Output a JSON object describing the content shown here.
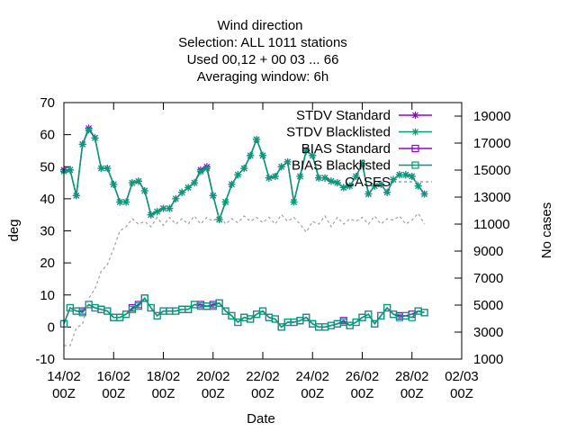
{
  "chart_data": {
    "type": "line",
    "title_lines": [
      "Wind direction",
      "Selection: ALL    1011 stations",
      "Used  00,12  + 00 03 ... 66",
      "Averaging window:  6h"
    ],
    "xlabel": "Date",
    "ylabel": "deg",
    "y2label": "No cases",
    "ylim": [
      -10,
      70
    ],
    "y2lim": [
      1000,
      20000
    ],
    "xlim": [
      0,
      16
    ],
    "yticks": [
      "-10",
      "0",
      "10",
      "20",
      "30",
      "40",
      "50",
      "60",
      "70"
    ],
    "y2ticks": [
      "1000",
      "3000",
      "5000",
      "7000",
      "9000",
      "11000",
      "13000",
      "15000",
      "17000",
      "19000"
    ],
    "xticks": [
      {
        "day": "14/02",
        "time": "00Z"
      },
      {
        "day": "16/02",
        "time": "00Z"
      },
      {
        "day": "18/02",
        "time": "00Z"
      },
      {
        "day": "20/02",
        "time": "00Z"
      },
      {
        "day": "22/02",
        "time": "00Z"
      },
      {
        "day": "24/02",
        "time": "00Z"
      },
      {
        "day": "26/02",
        "time": "00Z"
      },
      {
        "day": "28/02",
        "time": "00Z"
      },
      {
        "day": "02/03",
        "time": "00Z"
      }
    ],
    "x_units": "days since 14/02 00Z",
    "legend": {
      "position": "top-right",
      "entries": [
        "STDV Standard",
        "STDV Blacklisted",
        "BIAS Standard",
        "BIAS Blacklisted",
        "CASES"
      ]
    },
    "colors": {
      "standard": "#9400d3",
      "blacklisted": "#009e73",
      "cases": "#a0a0a0"
    },
    "series": [
      {
        "name": "STDV Standard",
        "axis": "y1",
        "x": [
          0,
          0.25,
          0.5,
          0.75,
          1,
          1.25,
          1.5,
          1.75,
          2,
          2.25,
          2.5,
          2.75,
          3,
          3.25,
          3.5,
          3.75,
          4,
          4.25,
          4.5,
          4.75,
          5,
          5.25,
          5.5,
          5.75,
          6,
          6.25,
          6.5,
          6.75,
          7,
          7.25,
          7.5,
          7.75,
          8,
          8.25,
          8.5,
          8.75,
          9,
          9.25,
          9.5,
          9.75,
          10,
          10.25,
          10.5,
          10.75,
          11,
          11.25,
          11.5,
          11.75,
          12,
          12.25,
          12.5,
          12.75,
          13,
          13.25,
          13.5,
          13.75,
          14,
          14.25,
          14.5
        ],
        "values": [
          49,
          49,
          41,
          57,
          62,
          59,
          49.5,
          49.5,
          44.5,
          39,
          39,
          45,
          45.5,
          42.5,
          35,
          36,
          37,
          37,
          40,
          42,
          43.5,
          45,
          49,
          50,
          41,
          33.5,
          39,
          44.5,
          47.5,
          49.5,
          53.5,
          58.5,
          53.5,
          46.5,
          47,
          50,
          51.5,
          39,
          47,
          55,
          53.5,
          46.5,
          46.5,
          45.5,
          45,
          43.5,
          44,
          47,
          51,
          41.5,
          44,
          44.5,
          42,
          46,
          47.5,
          47.5,
          47,
          44,
          41.5
        ]
      },
      {
        "name": "STDV Blacklisted",
        "axis": "y1",
        "x": [
          0,
          0.25,
          0.5,
          0.75,
          1,
          1.25,
          1.5,
          1.75,
          2,
          2.25,
          2.5,
          2.75,
          3,
          3.25,
          3.5,
          3.75,
          4,
          4.25,
          4.5,
          4.75,
          5,
          5.25,
          5.5,
          5.75,
          6,
          6.25,
          6.5,
          6.75,
          7,
          7.25,
          7.5,
          7.75,
          8,
          8.25,
          8.5,
          8.75,
          9,
          9.25,
          9.5,
          9.75,
          10,
          10.25,
          10.5,
          10.75,
          11,
          11.25,
          11.5,
          11.75,
          12,
          12.25,
          12.5,
          12.75,
          13,
          13.25,
          13.5,
          13.75,
          14,
          14.25,
          14.5
        ],
        "values": [
          48.5,
          49,
          41,
          57,
          61.5,
          59,
          49.5,
          49.5,
          44.5,
          39,
          39,
          45,
          45.5,
          42.5,
          35,
          36,
          37,
          37,
          40,
          42,
          43.5,
          45,
          48.5,
          49.5,
          41,
          33.5,
          39,
          44.5,
          47.5,
          49.5,
          53.5,
          58.5,
          53.5,
          46.5,
          47,
          50,
          51.5,
          39,
          47,
          55,
          53.5,
          46.5,
          46.5,
          45.5,
          45,
          43.5,
          44,
          47,
          51,
          41.5,
          44,
          44.5,
          42,
          46,
          47.5,
          47.5,
          47,
          44,
          41.5
        ]
      },
      {
        "name": "BIAS Standard",
        "axis": "y1",
        "x": [
          0,
          0.25,
          0.5,
          0.75,
          1,
          1.25,
          1.5,
          1.75,
          2,
          2.25,
          2.5,
          2.75,
          3,
          3.25,
          3.5,
          3.75,
          4,
          4.25,
          4.5,
          4.75,
          5,
          5.25,
          5.5,
          5.75,
          6,
          6.25,
          6.5,
          6.75,
          7,
          7.25,
          7.5,
          7.75,
          8,
          8.25,
          8.5,
          8.75,
          9,
          9.25,
          9.5,
          9.75,
          10,
          10.25,
          10.5,
          10.75,
          11,
          11.25,
          11.5,
          11.75,
          12,
          12.25,
          12.5,
          12.75,
          13,
          13.25,
          13.5,
          13.75,
          14,
          14.25,
          14.5
        ],
        "values": [
          1,
          6,
          5,
          5,
          7,
          6,
          5.5,
          5,
          3,
          3,
          4,
          6,
          7,
          9,
          6,
          3.5,
          5,
          5,
          5,
          5.5,
          5.5,
          7,
          7,
          6.5,
          7,
          7.5,
          5,
          3.5,
          1.5,
          3,
          2.5,
          4,
          5,
          3,
          2.5,
          0,
          1.5,
          1.5,
          2,
          3,
          1,
          0,
          0,
          0.5,
          1,
          2,
          0.5,
          1.5,
          3,
          4,
          1,
          3.5,
          6,
          4,
          3.5,
          3.5,
          4,
          5,
          4.5
        ]
      },
      {
        "name": "BIAS Blacklisted",
        "axis": "y1",
        "x": [
          0,
          0.25,
          0.5,
          0.75,
          1,
          1.25,
          1.5,
          1.75,
          2,
          2.25,
          2.5,
          2.75,
          3,
          3.25,
          3.5,
          3.75,
          4,
          4.25,
          4.5,
          4.75,
          5,
          5.25,
          5.5,
          5.75,
          6,
          6.25,
          6.5,
          6.75,
          7,
          7.25,
          7.5,
          7.75,
          8,
          8.25,
          8.5,
          8.75,
          9,
          9.25,
          9.5,
          9.75,
          10,
          10.25,
          10.5,
          10.75,
          11,
          11.25,
          11.5,
          11.75,
          12,
          12.25,
          12.5,
          12.75,
          13,
          13.25,
          13.5,
          13.75,
          14,
          14.25,
          14.5
        ],
        "values": [
          1,
          6,
          5,
          4.5,
          7,
          6,
          5.5,
          5,
          3,
          3,
          4,
          5.5,
          6.5,
          9,
          6,
          3.5,
          5,
          5,
          5,
          5.5,
          5.5,
          7,
          6.5,
          6.5,
          6.5,
          7.5,
          5,
          3.5,
          1.5,
          3,
          2.5,
          4,
          5,
          3,
          2.5,
          0,
          1.5,
          1.5,
          2,
          3,
          1,
          0,
          0,
          0.5,
          1,
          1.5,
          0.5,
          1.5,
          3,
          4,
          1,
          3.5,
          6,
          4,
          3,
          3.5,
          3,
          5,
          4.5
        ]
      },
      {
        "name": "CASES",
        "axis": "y2",
        "x": [
          0,
          0.25,
          0.5,
          0.75,
          1,
          1.25,
          1.5,
          1.75,
          2,
          2.25,
          2.5,
          2.75,
          3,
          3.25,
          3.5,
          3.75,
          4,
          4.25,
          4.5,
          4.75,
          5,
          5.25,
          5.5,
          5.75,
          6,
          6.25,
          6.5,
          6.75,
          7,
          7.25,
          7.5,
          7.75,
          8,
          8.25,
          8.5,
          8.75,
          9,
          9.25,
          9.5,
          9.75,
          10,
          10.25,
          10.5,
          10.75,
          11,
          11.25,
          11.5,
          11.75,
          12,
          12.25,
          12.5,
          12.75,
          13,
          13.25,
          13.5,
          13.75,
          14,
          14.25,
          14.5
        ],
        "values": [
          2000,
          2000,
          3300,
          3600,
          5500,
          6200,
          7500,
          8000,
          9200,
          10500,
          10800,
          11400,
          11000,
          11200,
          10800,
          11500,
          10900,
          11500,
          11000,
          11400,
          11000,
          11600,
          11000,
          11500,
          11200,
          11700,
          11000,
          11400,
          11100,
          11600,
          11200,
          11500,
          11100,
          11500,
          11000,
          11700,
          11200,
          11500,
          11000,
          10400,
          11200,
          11000,
          11600,
          10800,
          11500,
          11000,
          11400,
          11200,
          11500,
          11000,
          11600,
          11000,
          11400,
          11300,
          11600,
          11000,
          11300,
          11800,
          11000
        ]
      }
    ]
  }
}
